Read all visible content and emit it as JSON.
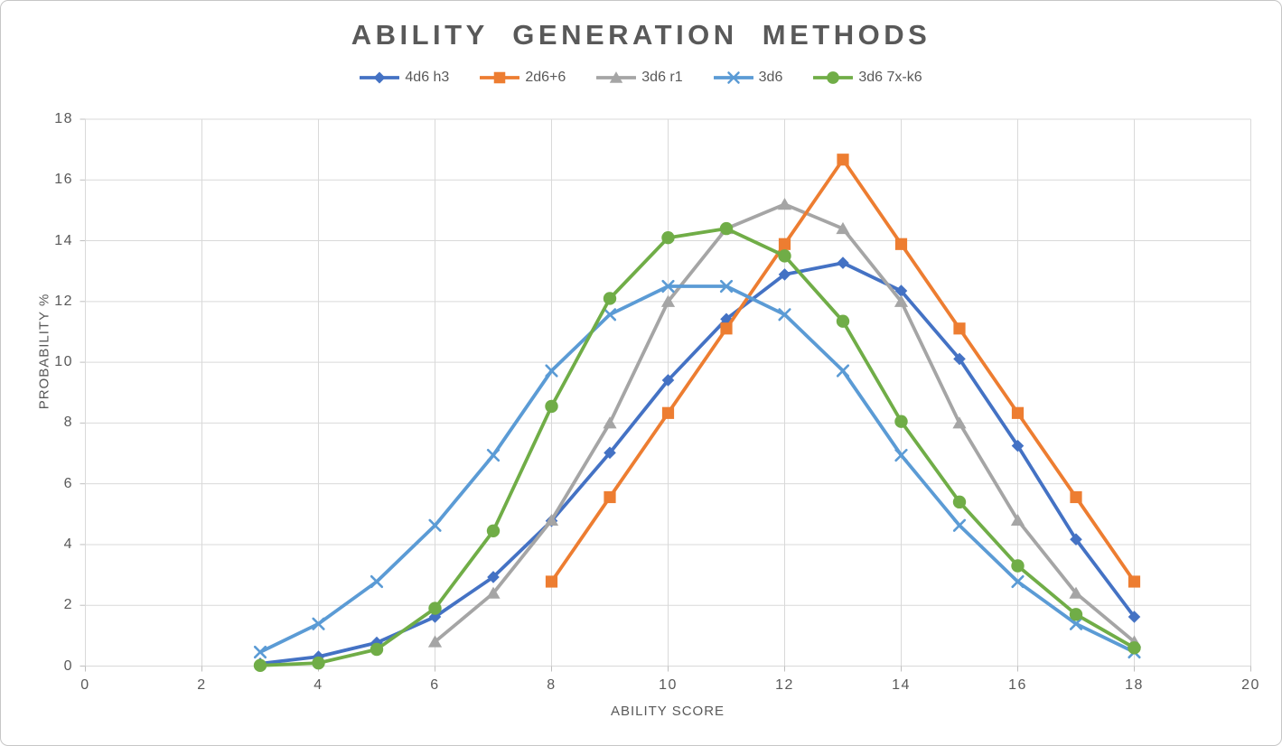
{
  "chart_data": {
    "type": "line",
    "title": "ABILITY GENERATION METHODS",
    "xlabel": "ABILITY SCORE",
    "ylabel": "PROBABILITY %",
    "xlim": [
      0,
      20
    ],
    "ylim": [
      0,
      18
    ],
    "x_ticks": [
      0,
      2,
      4,
      6,
      8,
      10,
      12,
      14,
      16,
      18,
      20
    ],
    "y_ticks": [
      0,
      2,
      4,
      6,
      8,
      10,
      12,
      14,
      16,
      18
    ],
    "grid": true,
    "legend_position": "top",
    "x": [
      3,
      4,
      5,
      6,
      7,
      8,
      9,
      10,
      11,
      12,
      13,
      14,
      15,
      16,
      17,
      18
    ],
    "series": [
      {
        "name": "4d6 h3",
        "color": "#4472C4",
        "marker": "diamond",
        "values": [
          0.08,
          0.31,
          0.77,
          1.62,
          2.93,
          4.78,
          7.02,
          9.41,
          11.42,
          12.89,
          13.27,
          12.35,
          10.11,
          7.25,
          4.17,
          1.62
        ]
      },
      {
        "name": "2d6+6",
        "color": "#ED7D31",
        "marker": "square",
        "values": [
          null,
          null,
          null,
          null,
          null,
          2.78,
          5.56,
          8.33,
          11.11,
          13.89,
          16.67,
          13.89,
          11.11,
          8.33,
          5.56,
          2.78
        ]
      },
      {
        "name": "3d6 r1",
        "color": "#A5A5A5",
        "marker": "triangle",
        "values": [
          null,
          null,
          null,
          0.8,
          2.4,
          4.8,
          8.0,
          12.0,
          14.4,
          15.2,
          14.4,
          12.0,
          8.0,
          4.8,
          2.4,
          0.8
        ]
      },
      {
        "name": "3d6",
        "color": "#5B9BD5",
        "marker": "x",
        "values": [
          0.46,
          1.39,
          2.78,
          4.63,
          6.94,
          9.72,
          11.57,
          12.5,
          12.5,
          11.57,
          9.72,
          6.94,
          4.63,
          2.78,
          1.39,
          0.46
        ]
      },
      {
        "name": "3d6 7x-k6",
        "color": "#70AD47",
        "marker": "circle",
        "values": [
          0.02,
          0.1,
          0.55,
          1.9,
          4.45,
          8.55,
          12.1,
          14.1,
          14.4,
          13.5,
          11.35,
          8.05,
          5.4,
          3.3,
          1.7,
          0.6
        ]
      }
    ],
    "colors": {
      "gridline": "#D9D9D9",
      "tick_mark": "#BFBFBF",
      "text": "#595959"
    }
  }
}
